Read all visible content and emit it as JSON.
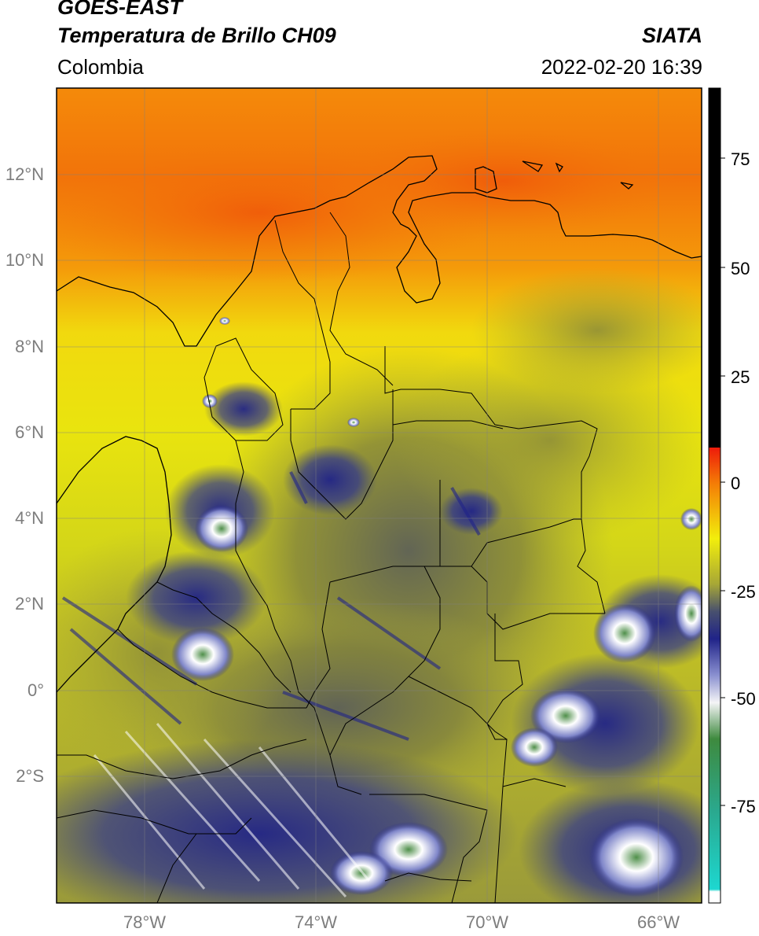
{
  "header": {
    "satellite": "GOES-EAST",
    "product": "Temperatura de Brillo CH09",
    "source": "SIATA",
    "region": "Colombia",
    "datetime": "2022-02-20 16:39"
  },
  "axes": {
    "lat_labels": [
      "12°N",
      "10°N",
      "8°N",
      "6°N",
      "4°N",
      "2°N",
      "0°",
      "2°S"
    ],
    "lon_labels": [
      "78°W",
      "74°W",
      "70°W",
      "66°W"
    ]
  },
  "colorbar": {
    "tick_labels": [
      "75",
      "50",
      "25",
      "0",
      "-25",
      "-50",
      "-75"
    ],
    "colors": {
      "black": "#000000",
      "red": "#ee1b0a",
      "orange": "#f47e06",
      "yellow": "#f2ee0c",
      "olive": "#a7a736",
      "gray_blue": "#48506e",
      "navy": "#202388",
      "white": "#f4f4f6",
      "green": "#3e8a3e",
      "cyan": "#1dd7d0"
    }
  }
}
